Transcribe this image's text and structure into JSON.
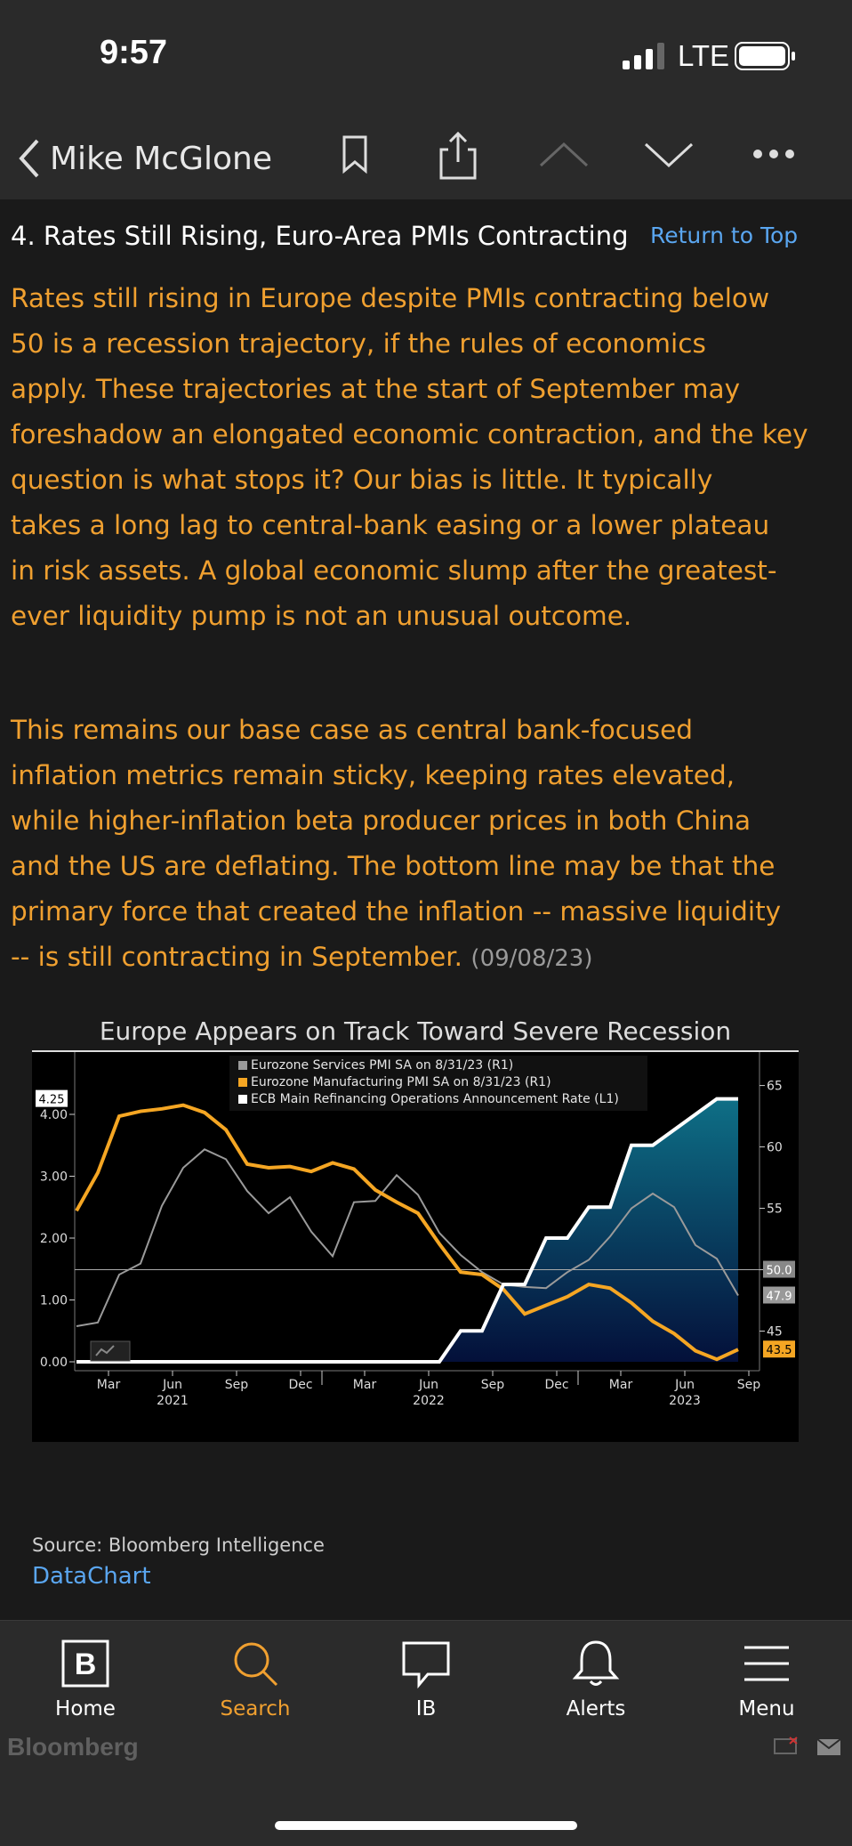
{
  "status": {
    "time": "9:57",
    "network": "LTE"
  },
  "nav": {
    "title": "Mike McGlone",
    "icons": [
      "chevron-left-icon",
      "bookmark-icon",
      "share-icon",
      "chevron-up-icon",
      "chevron-down-icon",
      "more-icon"
    ]
  },
  "section": {
    "title": "4. Rates Still Rising, Euro-Area PMIs Contracting",
    "return_link": "Return to Top",
    "para1_lines": [
      "Rates still rising in Europe despite PMIs contracting below",
      "50 is a recession trajectory, if the rules of economics",
      "apply. These trajectories at the start of September may",
      "foreshadow an elongated economic contraction, and the key",
      "question is what stops it? Our bias is little. It typically",
      "takes a long lag to central-bank easing or a lower plateau",
      "in risk assets. A global economic slump after the greatest-",
      "ever liquidity pump is not an unusual outcome."
    ],
    "para2_lines": [
      "This remains our base case as central bank-focused",
      "inflation metrics remain sticky, keeping rates elevated,",
      "while higher-inflation beta producer prices in both China",
      "and the US are deflating. The bottom line may be that the",
      "primary force that created the inflation -- massive liquidity",
      "-- is still contracting in September."
    ],
    "date": "(09/08/23)"
  },
  "chart_data": {
    "type": "line",
    "title": "Europe Appears on Track Toward Severe Recession",
    "x_ticks": [
      "Mar",
      "Jun",
      "Sep",
      "Dec",
      "Mar",
      "Jun",
      "Sep",
      "Dec",
      "Mar",
      "Jun",
      "Sep"
    ],
    "year_labels": [
      "2021",
      "2022",
      "2023"
    ],
    "left_axis": {
      "ticks": [
        "0.00",
        "1.00",
        "2.00",
        "3.00",
        "4.00"
      ],
      "range": [
        0,
        4.25
      ]
    },
    "right_axis": {
      "ticks": [
        "45",
        "50",
        "55",
        "60",
        "65"
      ],
      "range": [
        42.5,
        67
      ]
    },
    "reference_line": 50.0,
    "badges": {
      "left": "4.25",
      "r1": "50.0",
      "r2": "47.9",
      "r3": "43.5"
    },
    "x": [
      "2021-01",
      "2021-02",
      "2021-03",
      "2021-04",
      "2021-05",
      "2021-06",
      "2021-07",
      "2021-08",
      "2021-09",
      "2021-10",
      "2021-11",
      "2021-12",
      "2022-01",
      "2022-02",
      "2022-03",
      "2022-04",
      "2022-05",
      "2022-06",
      "2022-07",
      "2022-08",
      "2022-09",
      "2022-10",
      "2022-11",
      "2022-12",
      "2023-01",
      "2023-02",
      "2023-03",
      "2023-04",
      "2023-05",
      "2023-06",
      "2023-07",
      "2023-08"
    ],
    "series": [
      {
        "name": "Eurozone Services PMI SA on 8/31/23 (R1)",
        "color": "#9a9a9a",
        "axis": "R1",
        "values": [
          45.4,
          45.7,
          49.6,
          50.5,
          55.2,
          58.3,
          59.8,
          59.0,
          56.4,
          54.6,
          55.9,
          53.1,
          51.1,
          55.5,
          55.6,
          57.7,
          56.1,
          53.0,
          51.2,
          49.8,
          48.8,
          48.6,
          48.5,
          49.8,
          50.8,
          52.7,
          55.0,
          56.2,
          55.1,
          52.0,
          50.9,
          47.9
        ]
      },
      {
        "name": "Eurozone Manufacturing PMI SA on 8/31/23 (R1)",
        "color": "#f5a623",
        "axis": "R1",
        "values": [
          54.8,
          57.9,
          62.5,
          62.9,
          63.1,
          63.4,
          62.8,
          61.4,
          58.6,
          58.3,
          58.4,
          58.0,
          58.7,
          58.2,
          56.5,
          55.5,
          54.6,
          52.1,
          49.8,
          49.6,
          48.4,
          46.4,
          47.1,
          47.8,
          48.8,
          48.5,
          47.3,
          45.8,
          44.8,
          43.4,
          42.7,
          43.5
        ]
      },
      {
        "name": "ECB Main Refinancing Operations Announcement Rate (L1)",
        "color": "#ffffff",
        "axis": "L1",
        "values": [
          0,
          0,
          0,
          0,
          0,
          0,
          0,
          0,
          0,
          0,
          0,
          0,
          0,
          0,
          0,
          0,
          0,
          0,
          0.5,
          0.5,
          1.25,
          1.25,
          2.0,
          2.0,
          2.5,
          2.5,
          3.5,
          3.5,
          3.75,
          4.0,
          4.25,
          4.25
        ]
      }
    ]
  },
  "source": "Source: Bloomberg Intelligence",
  "datachart_link": "DataChart",
  "tabs": [
    {
      "label": "Home",
      "icon": "bloomberg-b-icon"
    },
    {
      "label": "Search",
      "icon": "search-icon"
    },
    {
      "label": "IB",
      "icon": "chat-bubble-icon"
    },
    {
      "label": "Alerts",
      "icon": "bell-icon"
    },
    {
      "label": "Menu",
      "icon": "menu-icon"
    }
  ],
  "brand": "Bloomberg",
  "colors": {
    "accent": "#f0a030",
    "link": "#5aa6f0",
    "teal": "#0e6f86"
  }
}
